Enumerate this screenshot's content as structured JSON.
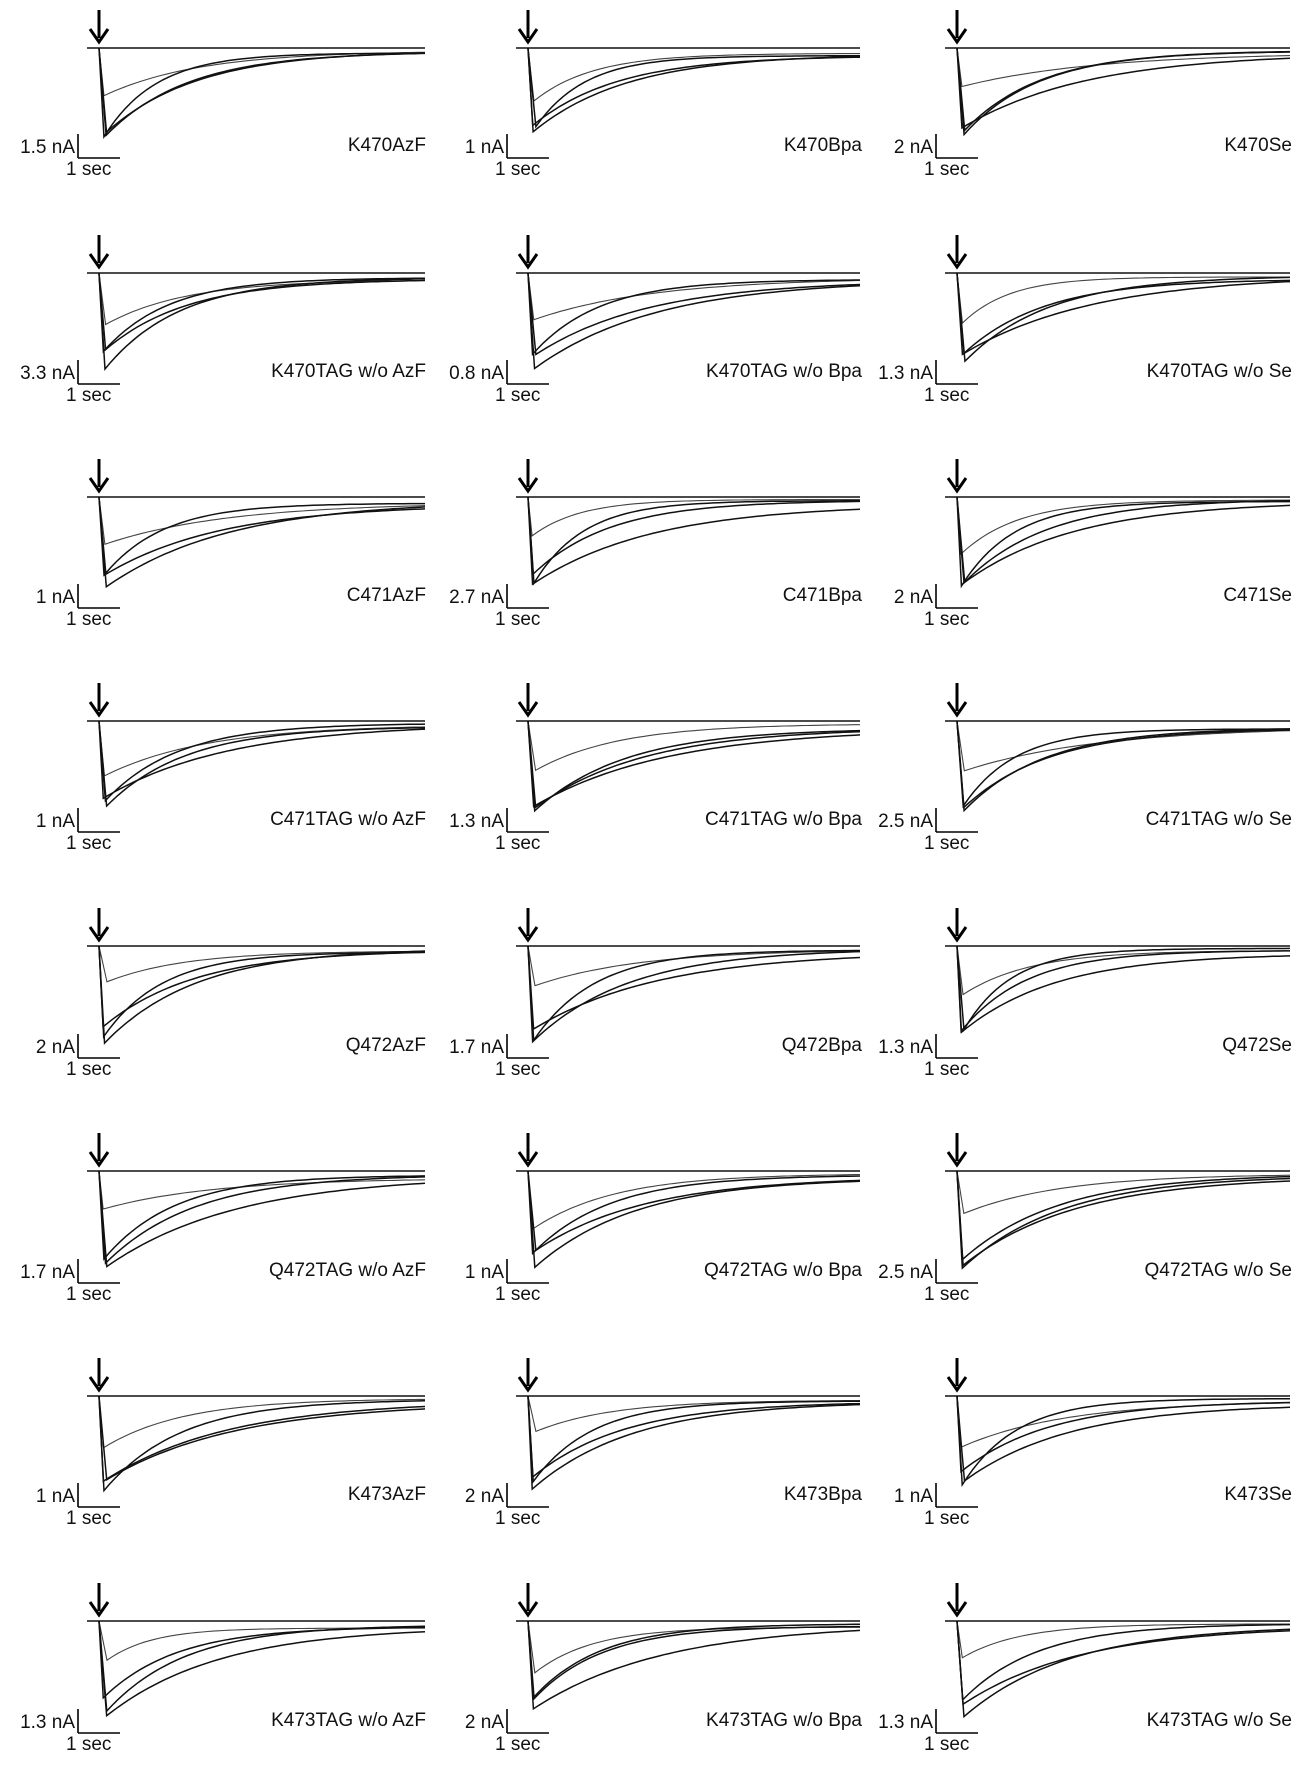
{
  "scale_bar_time": "1 sec",
  "panels": [
    {
      "mutant": "K470AzF",
      "current_scale": "1.5 nA"
    },
    {
      "mutant": "K470Bpa",
      "current_scale": "1 nA"
    },
    {
      "mutant": "K470Se",
      "current_scale": "2 nA"
    },
    {
      "mutant": "K470TAG w/o AzF",
      "current_scale": "3.3 nA"
    },
    {
      "mutant": "K470TAG w/o Bpa",
      "current_scale": "0.8 nA"
    },
    {
      "mutant": "K470TAG w/o Se",
      "current_scale": "1.3 nA"
    },
    {
      "mutant": "C471AzF",
      "current_scale": "1 nA"
    },
    {
      "mutant": "C471Bpa",
      "current_scale": "2.7 nA"
    },
    {
      "mutant": "C471Se",
      "current_scale": "2 nA"
    },
    {
      "mutant": "C471TAG w/o AzF",
      "current_scale": "1 nA"
    },
    {
      "mutant": "C471TAG w/o Bpa",
      "current_scale": "1.3 nA"
    },
    {
      "mutant": "C471TAG w/o Se",
      "current_scale": "2.5 nA"
    },
    {
      "mutant": "Q472AzF",
      "current_scale": "2 nA"
    },
    {
      "mutant": "Q472Bpa",
      "current_scale": "1.7 nA"
    },
    {
      "mutant": "Q472Se",
      "current_scale": "1.3 nA"
    },
    {
      "mutant": "Q472TAG w/o AzF",
      "current_scale": "1.7 nA"
    },
    {
      "mutant": "Q472TAG w/o Bpa",
      "current_scale": "1 nA"
    },
    {
      "mutant": "Q472TAG w/o Se",
      "current_scale": "2.5 nA"
    },
    {
      "mutant": "K473AzF",
      "current_scale": "1 nA"
    },
    {
      "mutant": "K473Bpa",
      "current_scale": "2 nA"
    },
    {
      "mutant": "K473Se",
      "current_scale": "1 nA"
    },
    {
      "mutant": "K473TAG w/o AzF",
      "current_scale": "1.3 nA"
    },
    {
      "mutant": "K473TAG w/o Bpa",
      "current_scale": "2 nA"
    },
    {
      "mutant": "K473TAG w/o Se",
      "current_scale": "1.3 nA"
    }
  ]
}
